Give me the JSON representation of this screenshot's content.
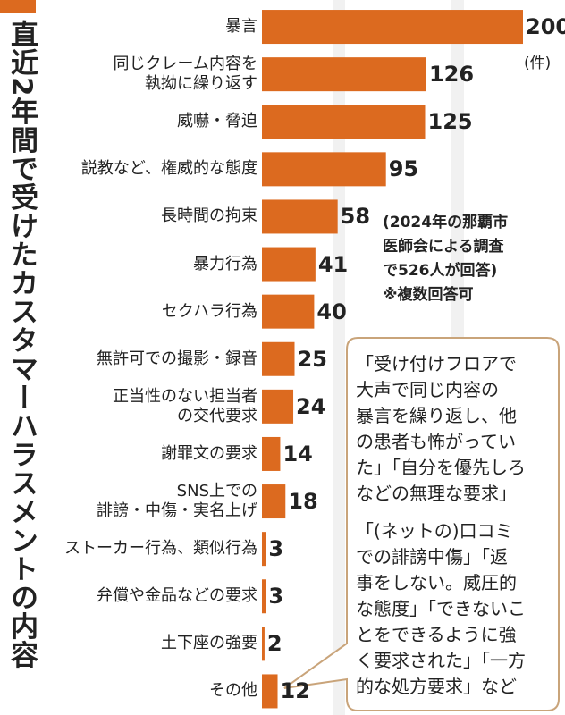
{
  "chart_data": {
    "type": "bar",
    "orientation": "horizontal",
    "title": "直近2年間で受けたカスタマーハラスメントの内容",
    "unit_label": "(件)",
    "note": "(2024年の那覇市\n医師会による調査\nで526人が回答)\n※複数回答可",
    "annotations": [
      "「受け付けフロアで\n大声で同じ内容の\n暴言を繰り返し、他\nの患者も怖がってい\nた」「自分を優先しろ\nなどの無理な要求」",
      "「(ネットの)口コミ\nでの誹謗中傷」「返\n事をしない。威圧的\nな態度」「できないこ\nとをできるように強\nく要求された」「一方\n的な処方要求」など"
    ],
    "categories": [
      "暴言",
      "同じクレーム内容を\n執拗に繰り返す",
      "威嚇・脅迫",
      "説教など、権威的な態度",
      "長時間の拘束",
      "暴力行為",
      "セクハラ行為",
      "無許可での撮影・録音",
      "正当性のない担当者\nの交代要求",
      "謝罪文の要求",
      "SNS上での\n誹謗・中傷・実名上げ",
      "ストーカー行為、類似行為",
      "弁償や金品などの要求",
      "土下座の強要",
      "その他"
    ],
    "values": [
      200,
      126,
      125,
      95,
      58,
      41,
      40,
      25,
      24,
      14,
      18,
      3,
      3,
      2,
      12
    ],
    "color": "#dc6a1f"
  }
}
